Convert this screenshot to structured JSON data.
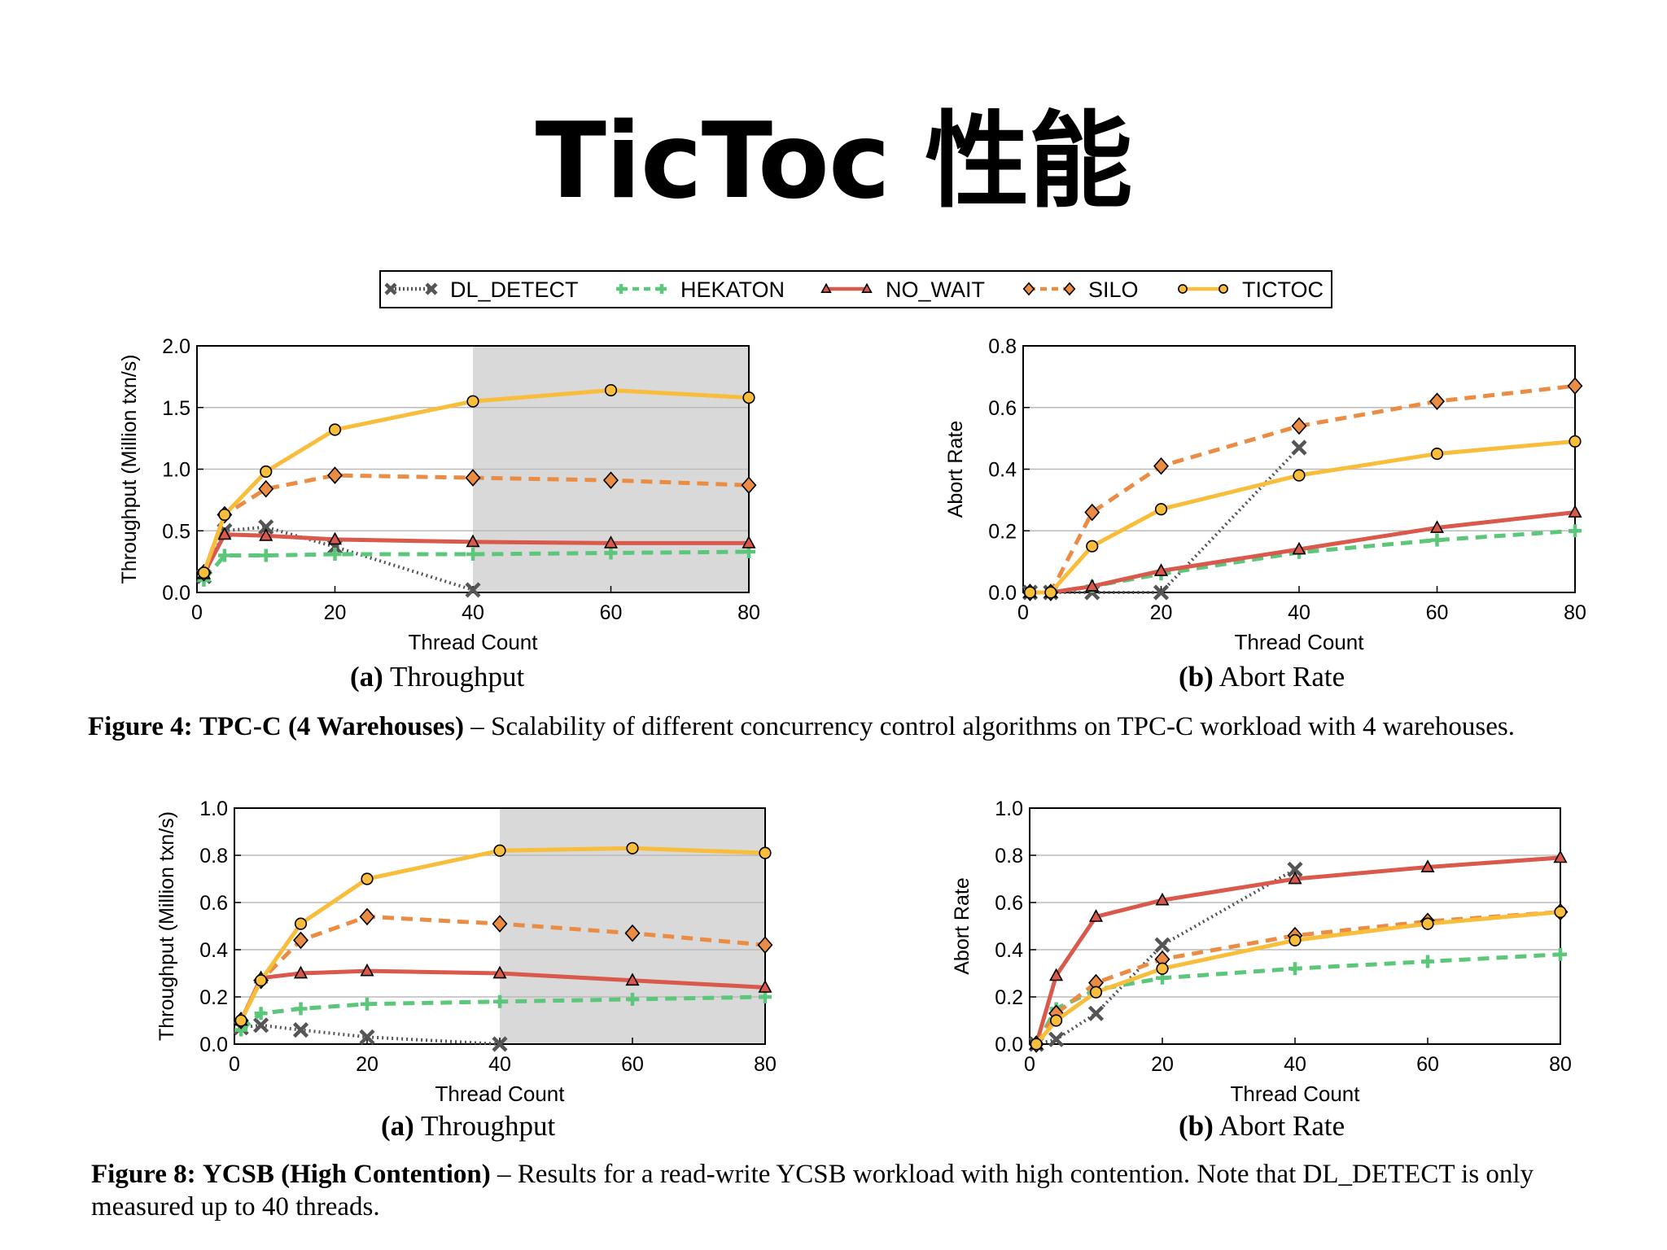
{
  "slide": {
    "title": "TicToc 性能"
  },
  "legend": [
    "DL_DETECT",
    "HEKATON",
    "NO_WAIT",
    "SILO",
    "TICTOC"
  ],
  "series_styles": {
    "DL_DETECT": {
      "color": "#555555",
      "marker": "x",
      "dash": "dotted"
    },
    "HEKATON": {
      "color": "#5cc77a",
      "marker": "+",
      "dash": "dashed"
    },
    "NO_WAIT": {
      "color": "#d9594c",
      "marker": "triangle",
      "dash": "solid"
    },
    "SILO": {
      "color": "#ea8c44",
      "marker": "diamond",
      "dash": "dashed"
    },
    "TICTOC": {
      "color": "#f7bd3b",
      "marker": "circle",
      "dash": "solid"
    }
  },
  "figure4": {
    "caption_label": "Figure 4:",
    "caption_bold": "TPC-C (4 Warehouses)",
    "caption_text": "– Scalability of different concurrency control algorithms on TPC-C workload with 4 warehouses."
  },
  "figure8": {
    "caption_label": "Figure 8:",
    "caption_bold": "YCSB (High Contention)",
    "caption_text": "– Results for a read-write YCSB workload with high contention.  Note that DL_DETECT is only",
    "caption_text2": "measured up to 40 threads."
  },
  "chart_data": [
    {
      "id": "tpcc-throughput",
      "type": "line",
      "subtitle_label": "(a)",
      "subtitle": "Throughput",
      "xlabel": "Thread Count",
      "ylabel": "Throughput (Million txn/s)",
      "xlim": [
        0,
        80
      ],
      "ylim": [
        0,
        2.0
      ],
      "xticks": [
        0,
        20,
        40,
        60,
        80
      ],
      "yticks": [
        "0.0",
        "0.5",
        "1.0",
        "1.5",
        "2.0"
      ],
      "shaded_x": [
        40,
        80
      ],
      "series": [
        {
          "name": "DL_DETECT",
          "x": [
            1,
            4,
            10,
            20,
            40
          ],
          "y": [
            0.13,
            0.5,
            0.53,
            0.37,
            0.02
          ]
        },
        {
          "name": "HEKATON",
          "x": [
            1,
            4,
            10,
            20,
            40,
            60,
            80
          ],
          "y": [
            0.1,
            0.3,
            0.3,
            0.31,
            0.31,
            0.32,
            0.33
          ]
        },
        {
          "name": "NO_WAIT",
          "x": [
            1,
            4,
            10,
            20,
            40,
            60,
            80
          ],
          "y": [
            0.15,
            0.47,
            0.46,
            0.43,
            0.41,
            0.4,
            0.4
          ]
        },
        {
          "name": "SILO",
          "x": [
            1,
            4,
            10,
            20,
            40,
            60,
            80
          ],
          "y": [
            0.16,
            0.63,
            0.84,
            0.95,
            0.93,
            0.91,
            0.87
          ]
        },
        {
          "name": "TICTOC",
          "x": [
            1,
            4,
            10,
            20,
            40,
            60,
            80
          ],
          "y": [
            0.16,
            0.63,
            0.98,
            1.32,
            1.55,
            1.64,
            1.58
          ]
        }
      ]
    },
    {
      "id": "tpcc-abort",
      "type": "line",
      "subtitle_label": "(b)",
      "subtitle": "Abort Rate",
      "xlabel": "Thread Count",
      "ylabel": "Abort Rate",
      "xlim": [
        0,
        80
      ],
      "ylim": [
        0,
        0.8
      ],
      "xticks": [
        0,
        20,
        40,
        60,
        80
      ],
      "yticks": [
        "0.0",
        "0.2",
        "0.4",
        "0.6",
        "0.8"
      ],
      "series": [
        {
          "name": "DL_DETECT",
          "x": [
            1,
            4,
            10,
            20,
            40
          ],
          "y": [
            0,
            0,
            0,
            0.0,
            0.47
          ]
        },
        {
          "name": "HEKATON",
          "x": [
            1,
            4,
            10,
            20,
            40,
            60,
            80
          ],
          "y": [
            0,
            0,
            0.02,
            0.06,
            0.13,
            0.17,
            0.2
          ]
        },
        {
          "name": "NO_WAIT",
          "x": [
            1,
            4,
            10,
            20,
            40,
            60,
            80
          ],
          "y": [
            0,
            0,
            0.02,
            0.07,
            0.14,
            0.21,
            0.26
          ]
        },
        {
          "name": "SILO",
          "x": [
            1,
            4,
            10,
            20,
            40,
            60,
            80
          ],
          "y": [
            0,
            0,
            0.26,
            0.41,
            0.54,
            0.62,
            0.67
          ]
        },
        {
          "name": "TICTOC",
          "x": [
            1,
            4,
            10,
            20,
            40,
            60,
            80
          ],
          "y": [
            0,
            0,
            0.15,
            0.27,
            0.38,
            0.45,
            0.49
          ]
        }
      ]
    },
    {
      "id": "ycsb-throughput",
      "type": "line",
      "subtitle_label": "(a)",
      "subtitle": "Throughput",
      "xlabel": "Thread Count",
      "ylabel": "Throughput (Million txn/s)",
      "xlim": [
        0,
        80
      ],
      "ylim": [
        0,
        1.0
      ],
      "xticks": [
        0,
        20,
        40,
        60,
        80
      ],
      "yticks": [
        "0.0",
        "0.2",
        "0.4",
        "0.6",
        "0.8",
        "1.0"
      ],
      "shaded_x": [
        40,
        80
      ],
      "series": [
        {
          "name": "DL_DETECT",
          "x": [
            1,
            4,
            10,
            20,
            40
          ],
          "y": [
            0.07,
            0.08,
            0.06,
            0.03,
            0.0
          ]
        },
        {
          "name": "HEKATON",
          "x": [
            1,
            4,
            10,
            20,
            40,
            60,
            80
          ],
          "y": [
            0.06,
            0.13,
            0.15,
            0.17,
            0.18,
            0.19,
            0.2
          ]
        },
        {
          "name": "NO_WAIT",
          "x": [
            1,
            4,
            10,
            20,
            40,
            60,
            80
          ],
          "y": [
            0.1,
            0.28,
            0.3,
            0.31,
            0.3,
            0.27,
            0.24
          ]
        },
        {
          "name": "SILO",
          "x": [
            1,
            4,
            10,
            20,
            40,
            60,
            80
          ],
          "y": [
            0.1,
            0.27,
            0.44,
            0.54,
            0.51,
            0.47,
            0.42
          ]
        },
        {
          "name": "TICTOC",
          "x": [
            1,
            4,
            10,
            20,
            40,
            60,
            80
          ],
          "y": [
            0.1,
            0.27,
            0.51,
            0.7,
            0.82,
            0.83,
            0.81
          ]
        }
      ]
    },
    {
      "id": "ycsb-abort",
      "type": "line",
      "subtitle_label": "(b)",
      "subtitle": "Abort Rate",
      "xlabel": "Thread Count",
      "ylabel": "Abort Rate",
      "xlim": [
        0,
        80
      ],
      "ylim": [
        0,
        1.0
      ],
      "xticks": [
        0,
        20,
        40,
        60,
        80
      ],
      "yticks": [
        "0.0",
        "0.2",
        "0.4",
        "0.6",
        "0.8",
        "1.0"
      ],
      "series": [
        {
          "name": "DL_DETECT",
          "x": [
            1,
            4,
            10,
            20,
            40
          ],
          "y": [
            0,
            0.02,
            0.13,
            0.42,
            0.74
          ]
        },
        {
          "name": "HEKATON",
          "x": [
            1,
            4,
            10,
            20,
            40,
            60,
            80
          ],
          "y": [
            0,
            0.15,
            0.23,
            0.28,
            0.32,
            0.35,
            0.38
          ]
        },
        {
          "name": "NO_WAIT",
          "x": [
            1,
            4,
            10,
            20,
            40,
            60,
            80
          ],
          "y": [
            0,
            0.29,
            0.54,
            0.61,
            0.7,
            0.75,
            0.79
          ]
        },
        {
          "name": "SILO",
          "x": [
            1,
            4,
            10,
            20,
            40,
            60,
            80
          ],
          "y": [
            0,
            0.13,
            0.26,
            0.36,
            0.46,
            0.52,
            0.56
          ]
        },
        {
          "name": "TICTOC",
          "x": [
            1,
            4,
            10,
            20,
            40,
            60,
            80
          ],
          "y": [
            0,
            0.1,
            0.22,
            0.32,
            0.44,
            0.51,
            0.56
          ]
        }
      ]
    }
  ]
}
